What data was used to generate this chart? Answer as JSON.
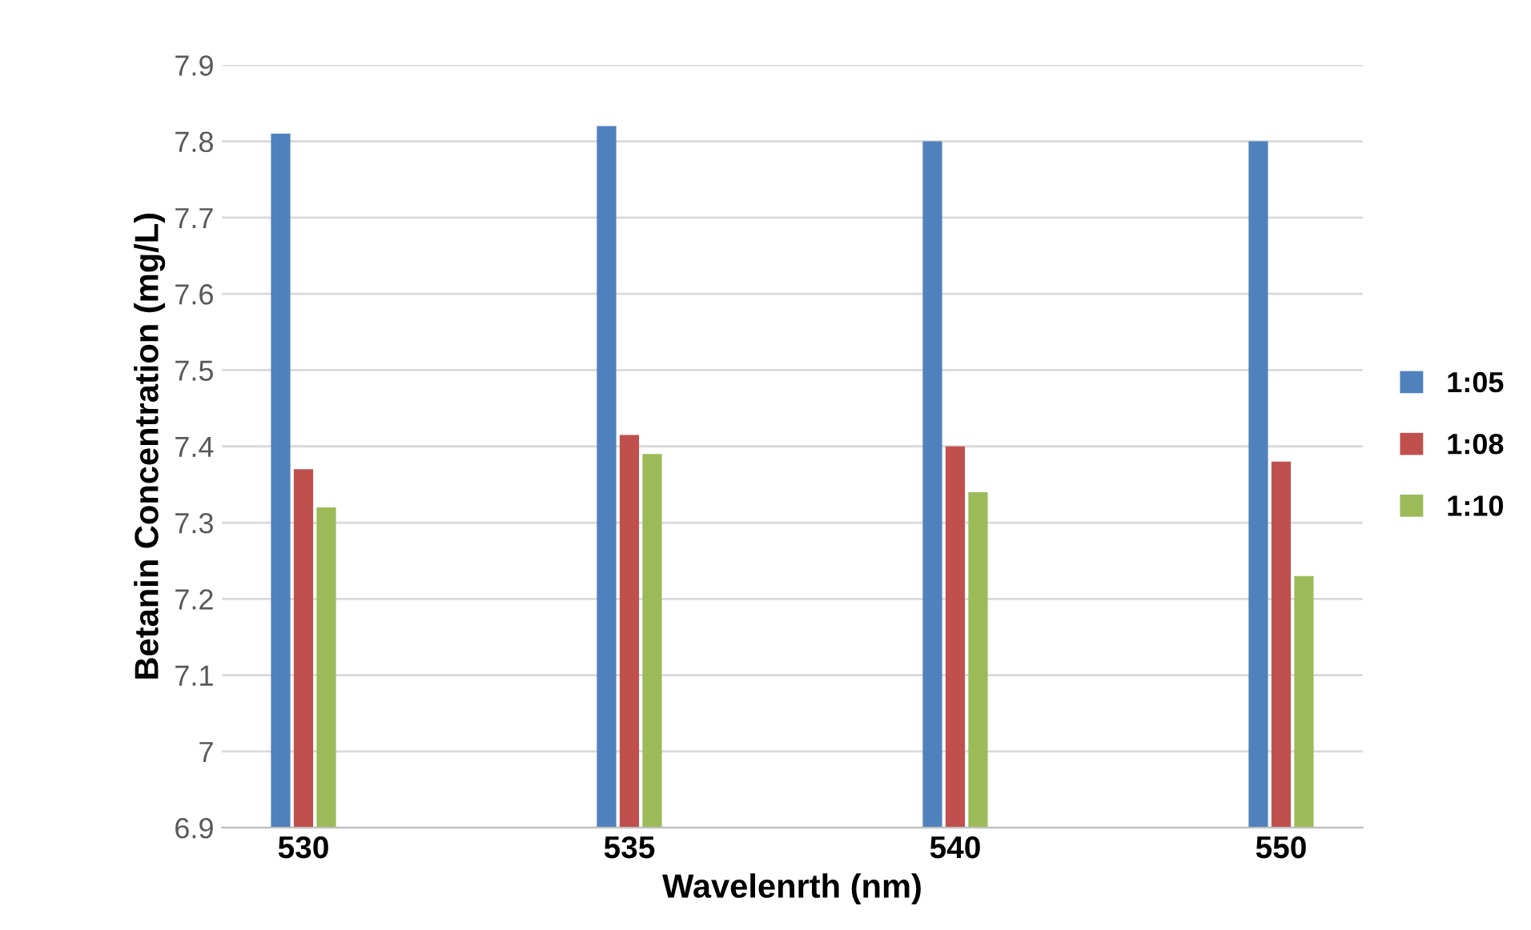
{
  "chart_data": {
    "type": "bar",
    "xlabel": "Wavelenrth (nm)",
    "ylabel": "Betanin Concentration (mg/L)",
    "categories": [
      "530",
      "535",
      "540",
      "550"
    ],
    "series": [
      {
        "name": "1:05",
        "color": "#4f81bd",
        "values": [
          7.81,
          7.82,
          7.8,
          7.8
        ]
      },
      {
        "name": "1:08",
        "color": "#c0504d",
        "values": [
          7.37,
          7.415,
          7.4,
          7.38
        ]
      },
      {
        "name": "1:10",
        "color": "#9bbb59",
        "values": [
          7.32,
          7.39,
          7.34,
          7.23
        ]
      }
    ],
    "ylim": [
      6.9,
      7.9
    ],
    "yticks": [
      {
        "value": 6.9,
        "label": "6.9"
      },
      {
        "value": 7.0,
        "label": "7"
      },
      {
        "value": 7.1,
        "label": "7.1"
      },
      {
        "value": 7.2,
        "label": "7.2"
      },
      {
        "value": 7.3,
        "label": "7.3"
      },
      {
        "value": 7.4,
        "label": "7.4"
      },
      {
        "value": 7.5,
        "label": "7.5"
      },
      {
        "value": 7.6,
        "label": "7.6"
      },
      {
        "value": 7.7,
        "label": "7.7"
      },
      {
        "value": 7.8,
        "label": "7.8"
      },
      {
        "value": 7.9,
        "label": "7.9"
      }
    ],
    "grid": "y",
    "legend": "right"
  }
}
